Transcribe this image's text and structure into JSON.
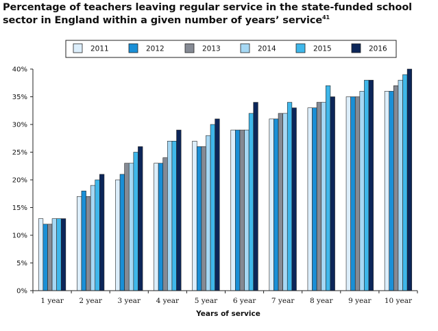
{
  "title": {
    "text": "Percentage of teachers leaving regular service in the state-funded school sector in England within a given number of years’ service",
    "footnote": "41"
  },
  "chart_data": {
    "type": "bar",
    "title": "Percentage of teachers leaving regular service in the state-funded school sector in England within a given number of years’ service",
    "xlabel": "Years of service",
    "ylabel": "",
    "ylim": [
      0,
      40
    ],
    "y_ticks": [
      "0%",
      "5%",
      "10%",
      "15%",
      "20%",
      "25%",
      "30%",
      "35%",
      "40%"
    ],
    "y_tick_values": [
      0,
      5,
      10,
      15,
      20,
      25,
      30,
      35,
      40
    ],
    "grid": false,
    "legend_position": "top-center",
    "categories": [
      "1 year",
      "2 year",
      "3 year",
      "4 year",
      "5 year",
      "6 year",
      "7 year",
      "8 year",
      "9 year",
      "10 year"
    ],
    "series": [
      {
        "name": "2011",
        "color": "#dceefb",
        "values": [
          13,
          17,
          20,
          23,
          27,
          29,
          31,
          33,
          35,
          36
        ]
      },
      {
        "name": "2012",
        "color": "#1a8fd6",
        "values": [
          12,
          18,
          21,
          23,
          26,
          29,
          31,
          33,
          35,
          36
        ]
      },
      {
        "name": "2013",
        "color": "#858a94",
        "values": [
          12,
          17,
          23,
          24,
          26,
          29,
          32,
          34,
          35,
          37
        ]
      },
      {
        "name": "2014",
        "color": "#a6d8f4",
        "values": [
          13,
          19,
          23,
          27,
          28,
          29,
          32,
          34,
          36,
          38
        ]
      },
      {
        "name": "2015",
        "color": "#3fb7ea",
        "values": [
          13,
          20,
          25,
          27,
          30,
          32,
          34,
          37,
          38,
          39
        ]
      },
      {
        "name": "2016",
        "color": "#0c2659",
        "values": [
          13,
          21,
          26,
          29,
          31,
          34,
          33,
          35,
          38,
          40
        ]
      }
    ]
  }
}
